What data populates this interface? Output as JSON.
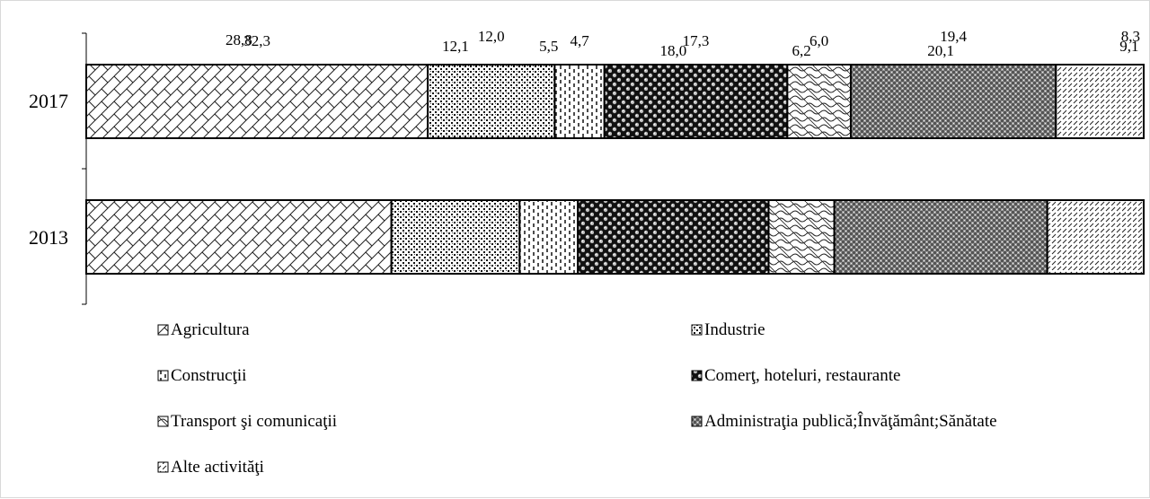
{
  "chart_data": {
    "type": "bar",
    "orientation": "horizontal",
    "stacked": true,
    "title": "",
    "xlabel": "",
    "ylabel": "",
    "categories": [
      "2017",
      "2013"
    ],
    "series": [
      {
        "name": "Agricultura",
        "values": [
          32.3,
          28.8
        ],
        "pattern": "diagonal-cross"
      },
      {
        "name": "Industrie",
        "values": [
          12.0,
          12.1
        ],
        "pattern": "dots"
      },
      {
        "name": "Construcţii",
        "values": [
          4.7,
          5.5
        ],
        "pattern": "vertical-dashes"
      },
      {
        "name": "Comerţ, hoteluri, restaurante",
        "values": [
          17.3,
          18.0
        ],
        "pattern": "dark-spheres"
      },
      {
        "name": "Transport şi comunicaţii",
        "values": [
          6.0,
          6.2
        ],
        "pattern": "wave"
      },
      {
        "name": "Administraţia publică;Învăţământ;Sănătate",
        "values": [
          19.4,
          20.1
        ],
        "pattern": "dense-grid"
      },
      {
        "name": "Alte activităţi",
        "values": [
          8.3,
          9.1
        ],
        "pattern": "diagonal-dashes"
      }
    ],
    "value_labels": [
      [
        "32,3",
        "12,0",
        "4,7",
        "17,3",
        "6,0",
        "19,4",
        "8,3"
      ],
      [
        "28,8",
        "12,1",
        "5,5",
        "18,0",
        "6,2",
        "20,1",
        "9,1"
      ]
    ],
    "legend_position": "bottom",
    "grid": false,
    "xlim": [
      0,
      100
    ]
  }
}
